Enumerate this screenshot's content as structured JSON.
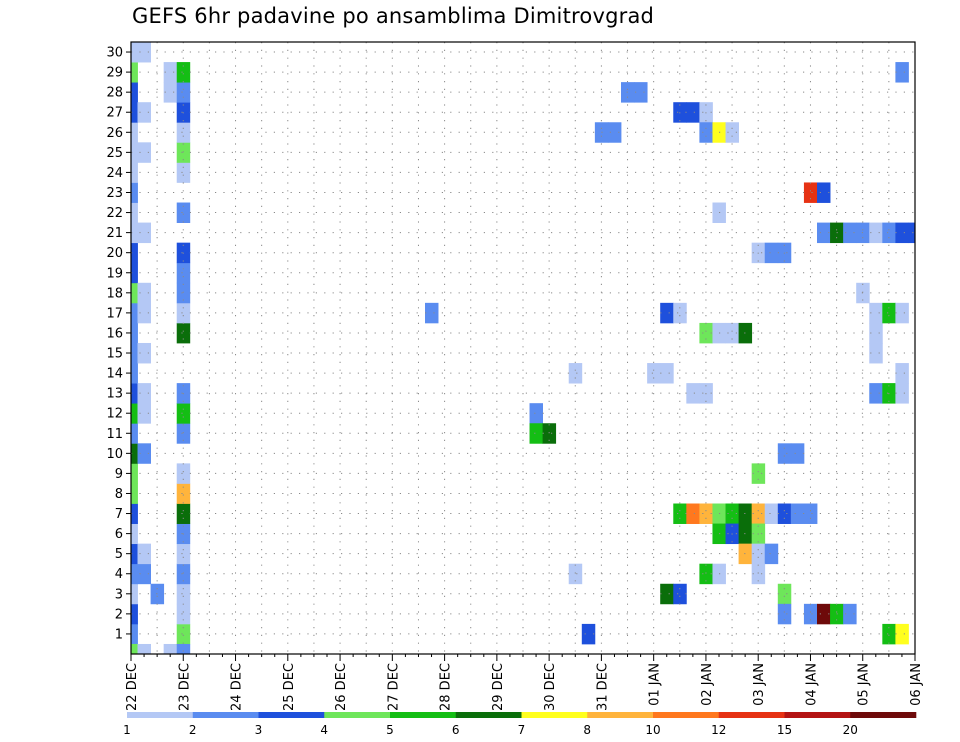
{
  "chart_data": {
    "type": "heatmap",
    "title": "GEFS 6hr padavine po ansamblima Dimitrovgrad",
    "x_tick_labels": [
      "22 DEC",
      "23 DEC",
      "24 DEC",
      "25 DEC",
      "26 DEC",
      "27 DEC",
      "28 DEC",
      "29 DEC",
      "30 DEC",
      "31 DEC",
      "01 JAN",
      "02 JAN",
      "03 JAN",
      "04 JAN",
      "05 JAN",
      "06 JAN"
    ],
    "x_steps_per_day": 4,
    "x_range_steps": [
      0,
      60
    ],
    "y_tick_labels": [
      "1",
      "2",
      "3",
      "4",
      "5",
      "6",
      "7",
      "8",
      "9",
      "10",
      "11",
      "12",
      "13",
      "14",
      "15",
      "16",
      "17",
      "18",
      "19",
      "20",
      "21",
      "22",
      "23",
      "24",
      "25",
      "26",
      "27",
      "28",
      "29",
      "30"
    ],
    "y_range": [
      0,
      30
    ],
    "grid": true,
    "legend": {
      "position": "bottom",
      "boundary_labels": [
        "1",
        "2",
        "3",
        "4",
        "5",
        "6",
        "7",
        "8",
        "10",
        "12",
        "15",
        "20"
      ],
      "colors": [
        "#b4c8f5",
        "#5a8cf0",
        "#1e50dc",
        "#6ee65a",
        "#14be14",
        "#0a6e0a",
        "#ffff1e",
        "#ffb43c",
        "#ff781e",
        "#e63214",
        "#b41414",
        "#6e0a0a"
      ]
    },
    "cells": [
      [
        0,
        1,
        1
      ],
      [
        0,
        2,
        2
      ],
      [
        0,
        3,
        0
      ],
      [
        0,
        4,
        1
      ],
      [
        0,
        5,
        2
      ],
      [
        0,
        6,
        0
      ],
      [
        0,
        7,
        2
      ],
      [
        0,
        8,
        3
      ],
      [
        0,
        9,
        3
      ],
      [
        0,
        10,
        5
      ],
      [
        0,
        11,
        1
      ],
      [
        0,
        12,
        4
      ],
      [
        0,
        13,
        2
      ],
      [
        0,
        14,
        1
      ],
      [
        0,
        15,
        1
      ],
      [
        0,
        16,
        1
      ],
      [
        0,
        17,
        1
      ],
      [
        0,
        18,
        3
      ],
      [
        0,
        19,
        2
      ],
      [
        0,
        20,
        2
      ],
      [
        0,
        21,
        0
      ],
      [
        0,
        22,
        0
      ],
      [
        0,
        23,
        1
      ],
      [
        0,
        24,
        0
      ],
      [
        0,
        25,
        0
      ],
      [
        0,
        26,
        0
      ],
      [
        0,
        27,
        2
      ],
      [
        0,
        28,
        2
      ],
      [
        0,
        29,
        3
      ],
      [
        0,
        30,
        0
      ],
      [
        0,
        0,
        3
      ],
      [
        1,
        4,
        1
      ],
      [
        1,
        5,
        0
      ],
      [
        1,
        10,
        1
      ],
      [
        1,
        12,
        0
      ],
      [
        1,
        13,
        0
      ],
      [
        1,
        15,
        0
      ],
      [
        1,
        17,
        0
      ],
      [
        1,
        18,
        0
      ],
      [
        1,
        21,
        0
      ],
      [
        1,
        25,
        0
      ],
      [
        1,
        27,
        0
      ],
      [
        1,
        30,
        0
      ],
      [
        1,
        0,
        0
      ],
      [
        2,
        3,
        1
      ],
      [
        3,
        28,
        0
      ],
      [
        3,
        29,
        0
      ],
      [
        3,
        0,
        0
      ],
      [
        4,
        1,
        3
      ],
      [
        4,
        2,
        0
      ],
      [
        4,
        3,
        0
      ],
      [
        4,
        4,
        1
      ],
      [
        4,
        5,
        0
      ],
      [
        4,
        6,
        1
      ],
      [
        4,
        7,
        5
      ],
      [
        4,
        8,
        7
      ],
      [
        4,
        9,
        0
      ],
      [
        4,
        11,
        1
      ],
      [
        4,
        12,
        4
      ],
      [
        4,
        13,
        1
      ],
      [
        4,
        16,
        5
      ],
      [
        4,
        17,
        0
      ],
      [
        4,
        18,
        1
      ],
      [
        4,
        19,
        1
      ],
      [
        4,
        20,
        2
      ],
      [
        4,
        22,
        1
      ],
      [
        4,
        24,
        0
      ],
      [
        4,
        25,
        3
      ],
      [
        4,
        26,
        0
      ],
      [
        4,
        27,
        2
      ],
      [
        4,
        28,
        1
      ],
      [
        4,
        29,
        4
      ],
      [
        4,
        0,
        1
      ],
      [
        23,
        17,
        1
      ],
      [
        31,
        12,
        1
      ],
      [
        31,
        11,
        4
      ],
      [
        32,
        11,
        5
      ],
      [
        34,
        4,
        0
      ],
      [
        34,
        14,
        0
      ],
      [
        35,
        1,
        2
      ],
      [
        36,
        26,
        1
      ],
      [
        37,
        26,
        1
      ],
      [
        38,
        28,
        1
      ],
      [
        39,
        28,
        1
      ],
      [
        40,
        14,
        0
      ],
      [
        41,
        14,
        0
      ],
      [
        41,
        3,
        5
      ],
      [
        41,
        17,
        2
      ],
      [
        42,
        3,
        2
      ],
      [
        42,
        17,
        0
      ],
      [
        42,
        7,
        4
      ],
      [
        43,
        7,
        8
      ],
      [
        44,
        7,
        7
      ],
      [
        45,
        7,
        3
      ],
      [
        46,
        7,
        4
      ],
      [
        47,
        7,
        5
      ],
      [
        48,
        7,
        7
      ],
      [
        49,
        7,
        0
      ],
      [
        50,
        7,
        2
      ],
      [
        51,
        7,
        1
      ],
      [
        52,
        7,
        1
      ],
      [
        42,
        27,
        2
      ],
      [
        43,
        27,
        2
      ],
      [
        44,
        27,
        0
      ],
      [
        43,
        13,
        0
      ],
      [
        44,
        13,
        0
      ],
      [
        44,
        4,
        4
      ],
      [
        45,
        4,
        0
      ],
      [
        44,
        16,
        3
      ],
      [
        45,
        16,
        0
      ],
      [
        46,
        16,
        0
      ],
      [
        47,
        16,
        5
      ],
      [
        44,
        26,
        1
      ],
      [
        45,
        26,
        6
      ],
      [
        46,
        26,
        0
      ],
      [
        45,
        6,
        4
      ],
      [
        46,
        6,
        2
      ],
      [
        47,
        6,
        5
      ],
      [
        48,
        6,
        3
      ],
      [
        45,
        22,
        0
      ],
      [
        47,
        5,
        7
      ],
      [
        48,
        5,
        0
      ],
      [
        49,
        5,
        1
      ],
      [
        48,
        4,
        0
      ],
      [
        48,
        9,
        3
      ],
      [
        48,
        20,
        0
      ],
      [
        49,
        20,
        1
      ],
      [
        50,
        20,
        1
      ],
      [
        50,
        3,
        3
      ],
      [
        50,
        2,
        1
      ],
      [
        50,
        10,
        1
      ],
      [
        51,
        10,
        1
      ],
      [
        52,
        23,
        9
      ],
      [
        53,
        23,
        2
      ],
      [
        52,
        2,
        1
      ],
      [
        53,
        2,
        11
      ],
      [
        54,
        2,
        4
      ],
      [
        55,
        2,
        1
      ],
      [
        53,
        21,
        1
      ],
      [
        54,
        21,
        5
      ],
      [
        55,
        21,
        1
      ],
      [
        56,
        21,
        1
      ],
      [
        57,
        21,
        0
      ],
      [
        58,
        21,
        1
      ],
      [
        59,
        21,
        2
      ],
      [
        60,
        21,
        2
      ],
      [
        56,
        18,
        0
      ],
      [
        57,
        17,
        0
      ],
      [
        57,
        16,
        0
      ],
      [
        57,
        15,
        0
      ],
      [
        58,
        17,
        4
      ],
      [
        59,
        17,
        0
      ],
      [
        57,
        13,
        1
      ],
      [
        58,
        13,
        4
      ],
      [
        59,
        13,
        0
      ],
      [
        59,
        14,
        0
      ],
      [
        58,
        1,
        4
      ],
      [
        59,
        1,
        6
      ],
      [
        59,
        29,
        1
      ]
    ]
  }
}
